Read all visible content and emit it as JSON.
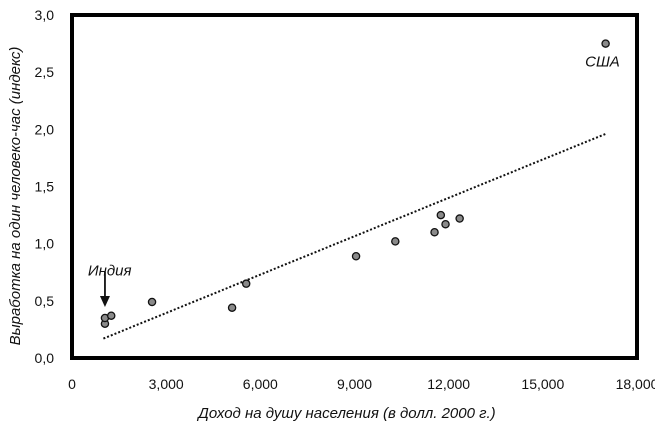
{
  "chart_data": {
    "type": "scatter",
    "title": "",
    "xlabel": "Доход на душу населения (в долл. 2000 г.)",
    "ylabel": "Выработка на один человеко-час (индекс)",
    "xlim": [
      0,
      18000
    ],
    "ylim": [
      0,
      3.0
    ],
    "grid": false,
    "x_ticks": [
      "0",
      "3,000",
      "6,000",
      "9,000",
      "12,000",
      "15,000",
      "18,000"
    ],
    "y_ticks": [
      "0,0",
      "0,5",
      "1,0",
      "1,5",
      "2,0",
      "2,5",
      "3,0"
    ],
    "points": [
      {
        "x": 1050,
        "y": 0.3
      },
      {
        "x": 1050,
        "y": 0.35
      },
      {
        "x": 1250,
        "y": 0.37
      },
      {
        "x": 2550,
        "y": 0.49
      },
      {
        "x": 5100,
        "y": 0.44
      },
      {
        "x": 5550,
        "y": 0.65
      },
      {
        "x": 9050,
        "y": 0.89
      },
      {
        "x": 10300,
        "y": 1.02
      },
      {
        "x": 11550,
        "y": 1.1
      },
      {
        "x": 11750,
        "y": 1.25
      },
      {
        "x": 11900,
        "y": 1.17
      },
      {
        "x": 12350,
        "y": 1.22
      },
      {
        "x": 17000,
        "y": 2.75
      }
    ],
    "trendline": {
      "style": "dotted",
      "from": {
        "x": 1000,
        "y": 0.17
      },
      "to": {
        "x": 17000,
        "y": 1.96
      }
    },
    "annotations": [
      {
        "text": "США",
        "x": 16900,
        "y": 2.55
      },
      {
        "text": "Индия",
        "x": 1200,
        "y": 0.72
      }
    ]
  }
}
